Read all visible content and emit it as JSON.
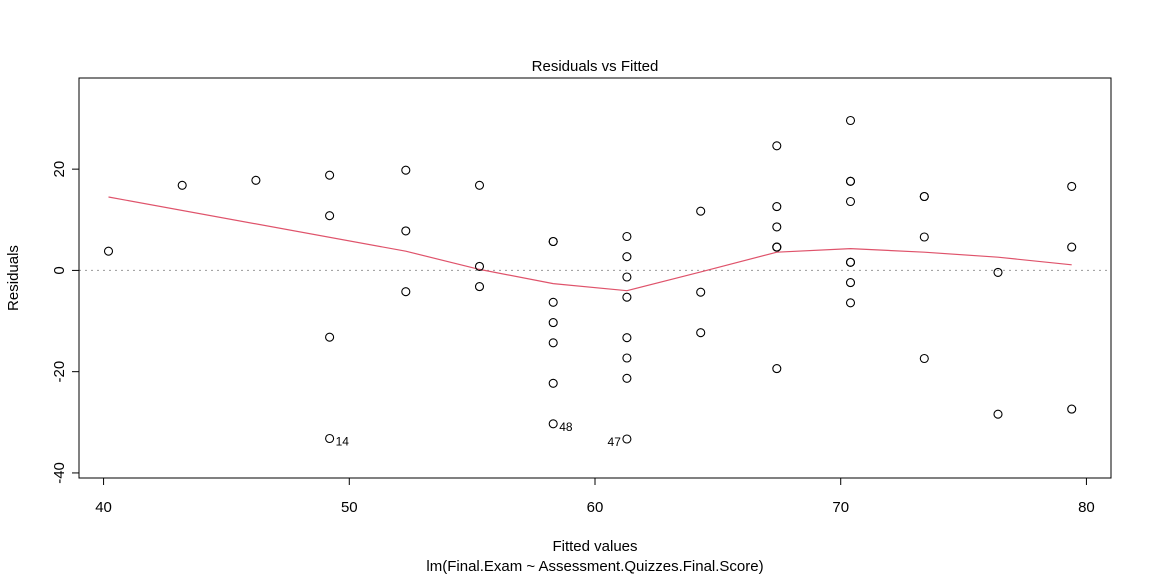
{
  "chart_data": {
    "type": "scatter",
    "title": "Residuals vs Fitted",
    "xlabel": "Fitted values",
    "sublabel": "lm(Final.Exam ~ Assessment.Quizzes.Final.Score)",
    "ylabel": "Residuals",
    "xlim": [
      39,
      81
    ],
    "ylim": [
      -41,
      38
    ],
    "x_ticks": [
      40,
      50,
      60,
      70,
      80
    ],
    "y_ticks": [
      -40,
      -20,
      0,
      20
    ],
    "reference_line": 0,
    "colors": {
      "points": "#000000",
      "smooth": "#DF536B",
      "reference": "#999999"
    },
    "points": [
      {
        "x": 40.2,
        "y": 3.8
      },
      {
        "x": 43.2,
        "y": 16.8
      },
      {
        "x": 46.2,
        "y": 17.8
      },
      {
        "x": 49.2,
        "y": 18.8
      },
      {
        "x": 49.2,
        "y": 10.8
      },
      {
        "x": 49.2,
        "y": -13.2
      },
      {
        "x": 49.2,
        "y": -33.2,
        "label": "14"
      },
      {
        "x": 52.3,
        "y": 19.8
      },
      {
        "x": 52.3,
        "y": 7.8
      },
      {
        "x": 52.3,
        "y": -4.2
      },
      {
        "x": 55.3,
        "y": 16.8
      },
      {
        "x": 55.3,
        "y": 0.8
      },
      {
        "x": 55.3,
        "y": -3.2
      },
      {
        "x": 58.3,
        "y": 5.7
      },
      {
        "x": 58.3,
        "y": 5.7
      },
      {
        "x": 58.3,
        "y": -6.3
      },
      {
        "x": 58.3,
        "y": -10.3
      },
      {
        "x": 58.3,
        "y": -14.3
      },
      {
        "x": 58.3,
        "y": -22.3
      },
      {
        "x": 58.3,
        "y": -30.3,
        "label": "48"
      },
      {
        "x": 61.3,
        "y": 6.7
      },
      {
        "x": 61.3,
        "y": 2.7
      },
      {
        "x": 61.3,
        "y": -1.3
      },
      {
        "x": 61.3,
        "y": -5.3
      },
      {
        "x": 61.3,
        "y": -13.3
      },
      {
        "x": 61.3,
        "y": -17.3
      },
      {
        "x": 61.3,
        "y": -21.3
      },
      {
        "x": 61.3,
        "y": -33.3,
        "label": "47"
      },
      {
        "x": 64.3,
        "y": 11.7
      },
      {
        "x": 64.3,
        "y": -4.3
      },
      {
        "x": 64.3,
        "y": -12.3
      },
      {
        "x": 67.4,
        "y": 24.6
      },
      {
        "x": 67.4,
        "y": 12.6
      },
      {
        "x": 67.4,
        "y": 8.6
      },
      {
        "x": 67.4,
        "y": 4.6
      },
      {
        "x": 67.4,
        "y": 4.6
      },
      {
        "x": 67.4,
        "y": -19.4
      },
      {
        "x": 70.4,
        "y": 29.6
      },
      {
        "x": 70.4,
        "y": 17.6
      },
      {
        "x": 70.4,
        "y": 17.6
      },
      {
        "x": 70.4,
        "y": 13.6
      },
      {
        "x": 70.4,
        "y": 1.6
      },
      {
        "x": 70.4,
        "y": 1.6
      },
      {
        "x": 70.4,
        "y": -2.4
      },
      {
        "x": 70.4,
        "y": -6.4
      },
      {
        "x": 73.4,
        "y": 14.6
      },
      {
        "x": 73.4,
        "y": 14.6
      },
      {
        "x": 73.4,
        "y": 6.6
      },
      {
        "x": 73.4,
        "y": -17.4
      },
      {
        "x": 76.4,
        "y": -0.4
      },
      {
        "x": 76.4,
        "y": -28.4
      },
      {
        "x": 79.4,
        "y": 16.6
      },
      {
        "x": 79.4,
        "y": 4.6
      },
      {
        "x": 79.4,
        "y": -27.4
      }
    ],
    "smooth": [
      {
        "x": 40.2,
        "y": 14.5
      },
      {
        "x": 52.3,
        "y": 3.8
      },
      {
        "x": 55.3,
        "y": 0.2
      },
      {
        "x": 58.3,
        "y": -2.6
      },
      {
        "x": 61.3,
        "y": -4.0
      },
      {
        "x": 64.3,
        "y": -0.3
      },
      {
        "x": 67.4,
        "y": 3.6
      },
      {
        "x": 70.4,
        "y": 4.3
      },
      {
        "x": 73.4,
        "y": 3.6
      },
      {
        "x": 76.4,
        "y": 2.6
      },
      {
        "x": 79.4,
        "y": 1.1
      }
    ]
  }
}
